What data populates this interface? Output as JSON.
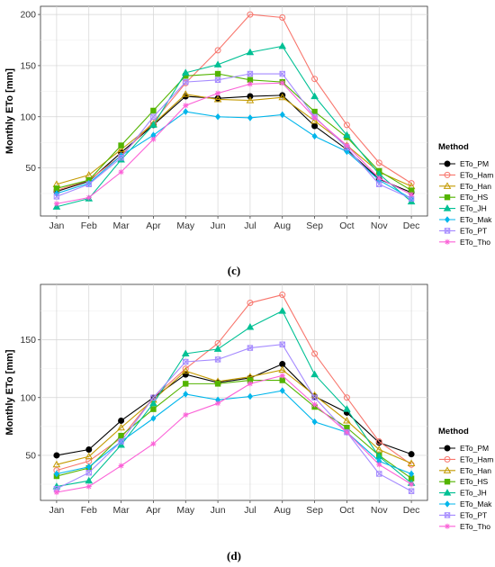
{
  "figure": {
    "legend_title": "Method",
    "ylabel": "Monthly ETo [mm]",
    "months": [
      "Jan",
      "Feb",
      "Mar",
      "Apr",
      "May",
      "Jun",
      "Jul",
      "Aug",
      "Sep",
      "Oct",
      "Nov",
      "Dec"
    ],
    "methods": [
      {
        "name": "ETo_PM",
        "color": "#000000",
        "marker": "circle-filled"
      },
      {
        "name": "ETo_Ham",
        "color": "#F8766D",
        "marker": "circle-open"
      },
      {
        "name": "ETo_Han",
        "color": "#C49A00",
        "marker": "triangle-open"
      },
      {
        "name": "ETo_HS",
        "color": "#53B400",
        "marker": "square-filled"
      },
      {
        "name": "ETo_JH",
        "color": "#00C094",
        "marker": "triangle-filled"
      },
      {
        "name": "ETo_Mak",
        "color": "#00B6EB",
        "marker": "diamond-filled"
      },
      {
        "name": "ETo_PT",
        "color": "#A58AFF",
        "marker": "square-cross"
      },
      {
        "name": "ETo_Tho",
        "color": "#FB61D7",
        "marker": "star"
      }
    ]
  },
  "chart_data": [
    {
      "type": "line",
      "panel_label": "(c)",
      "ylabel": "Monthly ETo [mm]",
      "categories": [
        "Jan",
        "Feb",
        "Mar",
        "Apr",
        "May",
        "Jun",
        "Jul",
        "Aug",
        "Sep",
        "Oct",
        "Nov",
        "Dec"
      ],
      "yticks": [
        50,
        100,
        150,
        200
      ],
      "ylim": [
        3,
        208
      ],
      "grid": true,
      "legend_title": "Method",
      "legend_position": "right",
      "series": [
        {
          "name": "ETo_PM",
          "values": [
            27,
            37,
            65,
            92,
            120,
            118,
            120,
            121,
            91,
            68,
            39,
            26
          ]
        },
        {
          "name": "ETo_Ham",
          "values": [
            28,
            38,
            62,
            95,
            133,
            165,
            200,
            197,
            137,
            92,
            55,
            35
          ]
        },
        {
          "name": "ETo_Han",
          "values": [
            34,
            43,
            68,
            93,
            122,
            117,
            116,
            119,
            96,
            72,
            46,
            32
          ]
        },
        {
          "name": "ETo_HS",
          "values": [
            30,
            38,
            72,
            106,
            140,
            142,
            136,
            134,
            105,
            80,
            47,
            28
          ]
        },
        {
          "name": "ETo_JH",
          "values": [
            12,
            20,
            58,
            92,
            143,
            151,
            163,
            169,
            120,
            82,
            44,
            17
          ]
        },
        {
          "name": "ETo_Mak",
          "values": [
            25,
            35,
            62,
            82,
            105,
            100,
            99,
            102,
            81,
            66,
            38,
            20
          ]
        },
        {
          "name": "ETo_PT",
          "values": [
            22,
            34,
            60,
            100,
            134,
            136,
            142,
            142,
            100,
            70,
            34,
            20
          ]
        },
        {
          "name": "ETo_Tho",
          "values": [
            15,
            21,
            46,
            78,
            111,
            123,
            132,
            133,
            99,
            72,
            40,
            24
          ]
        }
      ]
    },
    {
      "type": "line",
      "panel_label": "(d)",
      "ylabel": "Monthly ETo [mm]",
      "categories": [
        "Jan",
        "Feb",
        "Mar",
        "Apr",
        "May",
        "Jun",
        "Jul",
        "Aug",
        "Sep",
        "Oct",
        "Nov",
        "Dec"
      ],
      "yticks": [
        50,
        100,
        150
      ],
      "ylim": [
        11,
        198
      ],
      "grid": true,
      "legend_title": "Method",
      "legend_position": "right",
      "series": [
        {
          "name": "ETo_PM",
          "values": [
            50,
            55,
            80,
            100,
            120,
            113,
            117,
            129,
            101,
            87,
            61,
            51
          ]
        },
        {
          "name": "ETo_Ham",
          "values": [
            37,
            45,
            65,
            100,
            125,
            147,
            182,
            189,
            138,
            100,
            62,
            42
          ]
        },
        {
          "name": "ETo_Han",
          "values": [
            42,
            49,
            74,
            98,
            123,
            114,
            118,
            124,
            102,
            80,
            55,
            43
          ]
        },
        {
          "name": "ETo_HS",
          "values": [
            32,
            39,
            67,
            90,
            112,
            112,
            115,
            115,
            92,
            74,
            50,
            30
          ]
        },
        {
          "name": "ETo_JH",
          "values": [
            23,
            28,
            59,
            95,
            138,
            142,
            161,
            175,
            120,
            90,
            49,
            26
          ]
        },
        {
          "name": "ETo_Mak",
          "values": [
            34,
            40,
            62,
            82,
            103,
            98,
            101,
            106,
            79,
            70,
            45,
            34
          ]
        },
        {
          "name": "ETo_PT",
          "values": [
            21,
            35,
            62,
            100,
            131,
            133,
            143,
            146,
            100,
            70,
            34,
            19
          ]
        },
        {
          "name": "ETo_Tho",
          "values": [
            18,
            23,
            41,
            60,
            85,
            95,
            112,
            119,
            94,
            70,
            42,
            25
          ]
        }
      ]
    }
  ]
}
